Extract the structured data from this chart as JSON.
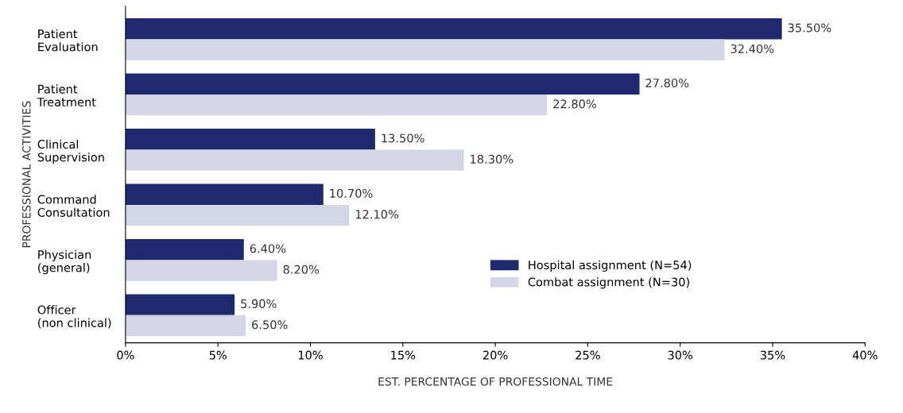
{
  "chart_data": {
    "type": "bar",
    "orientation": "horizontal",
    "xlabel": "EST. PERCENTAGE OF PROFESSIONAL TIME",
    "ylabel": "PROFESSIONAL ACTIVITIES",
    "categories": [
      "Patient\nEvaluation",
      "Patient\nTreatment",
      "Clinical\nSupervision",
      "Command\nConsultation",
      "Physician\n(general)",
      "Officer\n(non clinical)"
    ],
    "series": [
      {
        "name": "Hospital assignment (N=54)",
        "color": "#1f2a6e",
        "values": [
          35.5,
          27.8,
          13.5,
          10.7,
          6.4,
          5.9
        ],
        "value_labels": [
          "35.50%",
          "27.80%",
          "13.50%",
          "10.70%",
          "6.40%",
          "5.90%"
        ]
      },
      {
        "name": "Combat assignment (N=30)",
        "color": "#d3d6e4",
        "values": [
          32.4,
          22.8,
          18.3,
          12.1,
          8.2,
          6.5
        ],
        "value_labels": [
          "32.40%",
          "22.80%",
          "18.30%",
          "12.10%",
          "8.20%",
          "6.50%"
        ]
      }
    ],
    "xlim": [
      0,
      40
    ],
    "xticks": [
      {
        "value": 0,
        "label": "0%"
      },
      {
        "value": 5,
        "label": "5%"
      },
      {
        "value": 10,
        "label": "10%"
      },
      {
        "value": 15,
        "label": "15%"
      },
      {
        "value": 20,
        "label": "20%"
      },
      {
        "value": 25,
        "label": "25%"
      },
      {
        "value": 30,
        "label": "30%"
      },
      {
        "value": 35,
        "label": "35%"
      },
      {
        "value": 40,
        "label": "40%"
      }
    ],
    "grid": false,
    "legend": "bottom right"
  }
}
